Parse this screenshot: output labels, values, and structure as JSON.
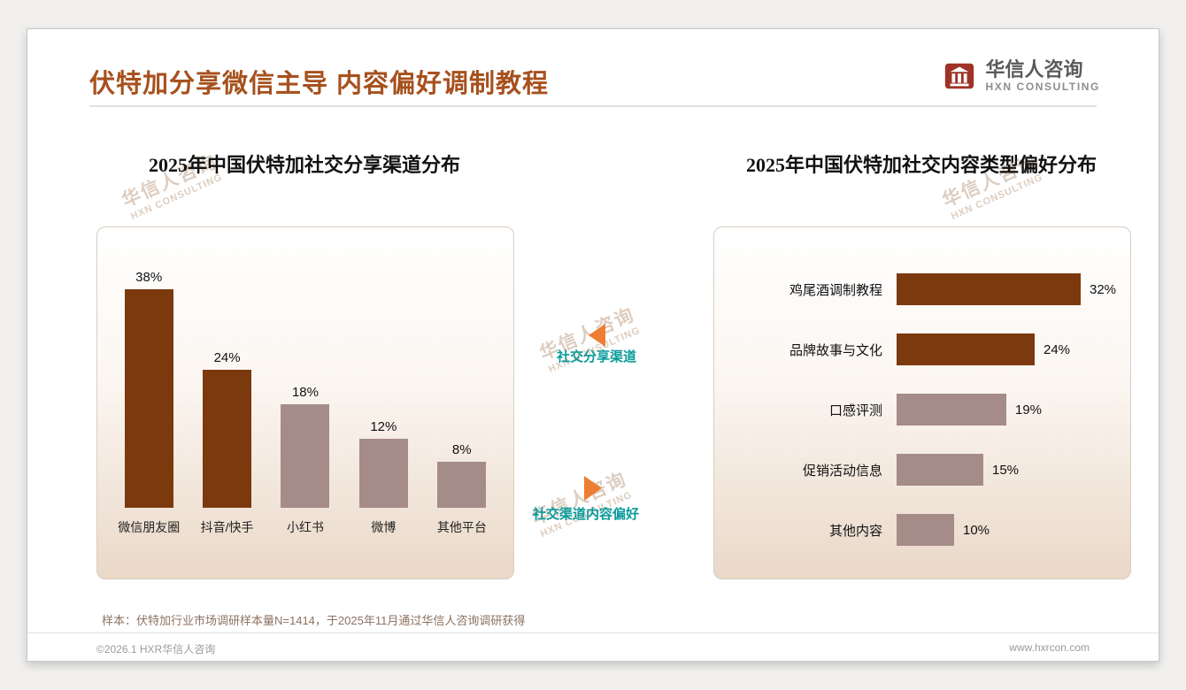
{
  "page": {
    "title": "伏特加分享微信主导 内容偏好调制教程",
    "logo": {
      "name": "华信人咨询",
      "sub": "HXN CONSULTING"
    },
    "watermark": {
      "line1": "华信人咨询",
      "line2": "HXN CONSULTING"
    },
    "sample_note": "样本：伏特加行业市场调研样本量N=1414，于2025年11月通过华信人咨询调研获得",
    "footer_left": "©2026.1 HXR华信人咨询",
    "footer_right": "www.hxrcon.com"
  },
  "annotations": {
    "left_label": "社交分享渠道",
    "right_label": "社交渠道内容偏好"
  },
  "colors": {
    "title": "#A6511E",
    "bar_dark": "#7B390D",
    "bar_muted": "#A58C88",
    "teal": "#0A9A9A",
    "orange": "#ED7D31"
  },
  "chart_data": [
    {
      "type": "bar",
      "orientation": "vertical",
      "title": "2025年中国伏特加社交分享渠道分布",
      "categories": [
        "微信朋友圈",
        "抖音/快手",
        "小红书",
        "微博",
        "其他平台"
      ],
      "values": [
        38,
        24,
        18,
        12,
        8
      ],
      "value_labels": [
        "38%",
        "24%",
        "18%",
        "12%",
        "8%"
      ],
      "unit": "%",
      "ylim": [
        0,
        40
      ],
      "grid": false,
      "legend": false,
      "bar_colors": [
        "#7B390D",
        "#7B390D",
        "#A58C88",
        "#A58C88",
        "#A58C88"
      ]
    },
    {
      "type": "bar",
      "orientation": "horizontal",
      "title": "2025年中国伏特加社交内容类型偏好分布",
      "categories": [
        "鸡尾酒调制教程",
        "品牌故事与文化",
        "口感评测",
        "促销活动信息",
        "其他内容"
      ],
      "values": [
        32,
        24,
        19,
        15,
        10
      ],
      "value_labels": [
        "32%",
        "24%",
        "19%",
        "15%",
        "10%"
      ],
      "unit": "%",
      "xlim": [
        0,
        35
      ],
      "grid": false,
      "legend": false,
      "bar_colors": [
        "#7B390D",
        "#7B390D",
        "#A58C88",
        "#A58C88",
        "#A58C88"
      ]
    }
  ]
}
